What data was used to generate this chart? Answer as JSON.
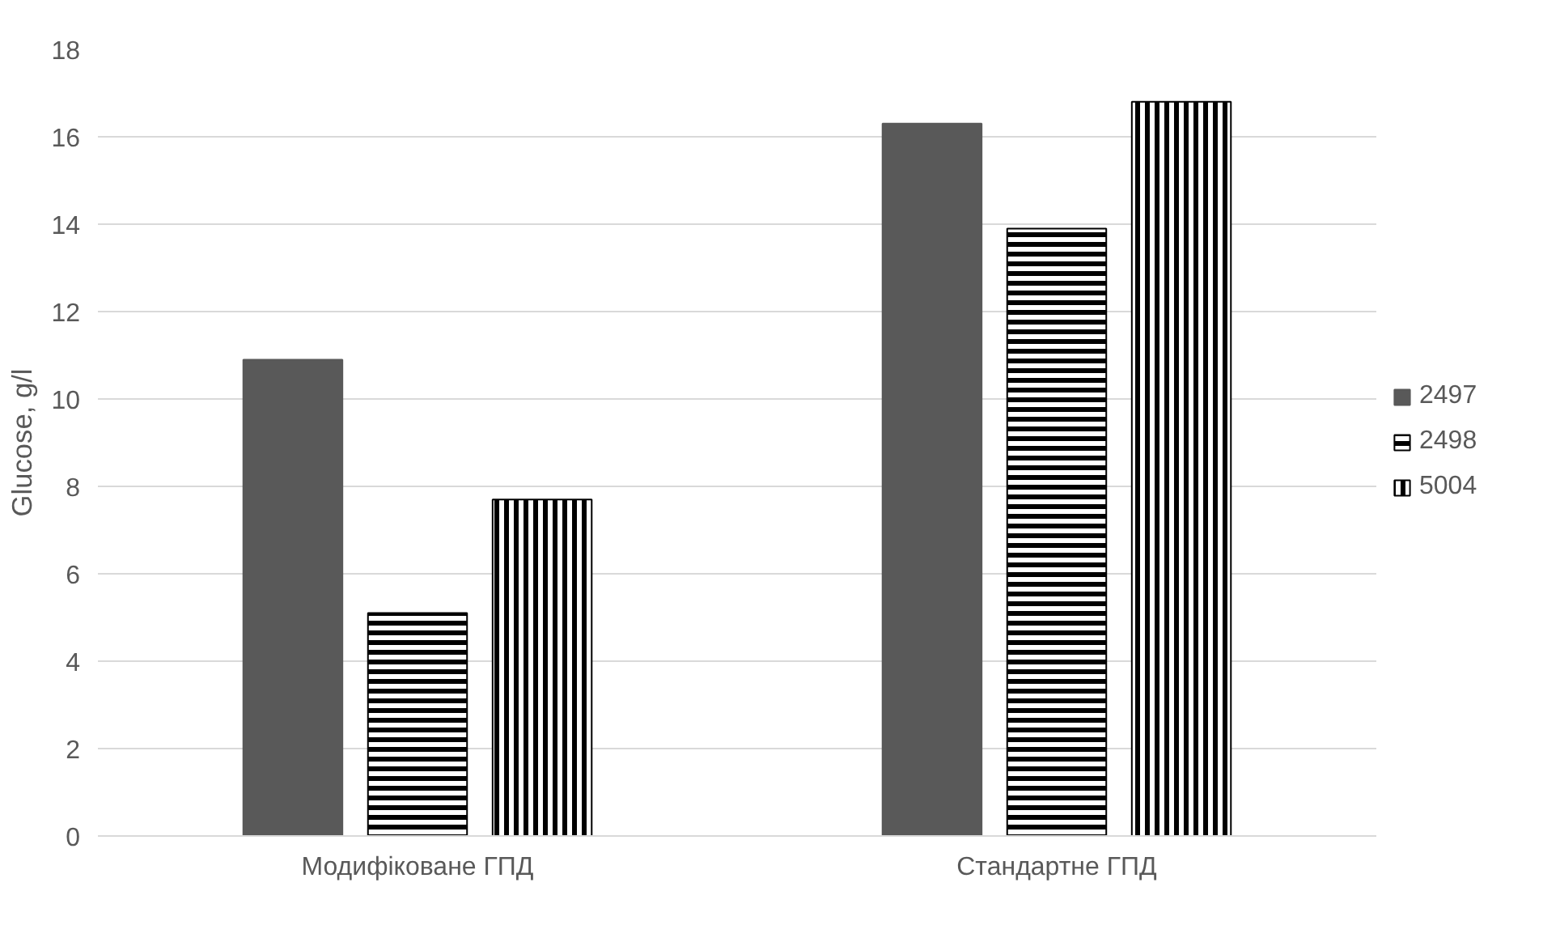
{
  "chart_data": {
    "type": "bar",
    "ylabel": "Glucose, g/l",
    "categories": [
      "Модифіковане ГПД",
      "Стандартне ГПД"
    ],
    "series": [
      {
        "name": "2497",
        "color": "#595959",
        "values": [
          10.9,
          16.3
        ]
      },
      {
        "name": "2498",
        "color": "#000000",
        "values": [
          5.1,
          13.9
        ]
      },
      {
        "name": "5004",
        "color": "#000000",
        "values": [
          7.7,
          16.8
        ]
      }
    ],
    "ylim": [
      0,
      18
    ],
    "yticks": [
      0,
      2,
      4,
      6,
      8,
      10,
      12,
      14,
      16,
      18
    ],
    "grid": "y",
    "legend": "right"
  }
}
